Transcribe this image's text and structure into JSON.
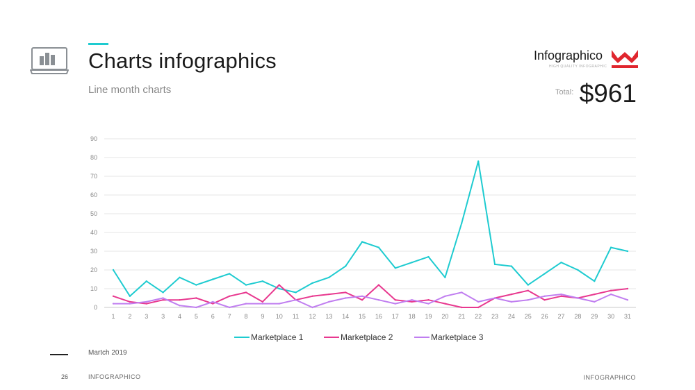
{
  "header": {
    "title": "Charts infographics",
    "subtitle": "Line month charts",
    "icon": "laptop-chart-icon",
    "accent_color": "#1ecbd0"
  },
  "brand": {
    "name": "Infographico",
    "tagline": "HIGH QUALITY INFOGRAPHIC",
    "logo_icon": "crown-logo-icon",
    "logo_color": "#e0262e"
  },
  "total": {
    "label": "Total:",
    "value": "$961"
  },
  "chart_data": {
    "type": "line",
    "x": [
      "1",
      "2",
      "3",
      "3",
      "4",
      "5",
      "6",
      "7",
      "8",
      "9",
      "10",
      "11",
      "12",
      "13",
      "14",
      "15",
      "16",
      "17",
      "18",
      "19",
      "20",
      "21",
      "22",
      "23",
      "24",
      "25",
      "26",
      "27",
      "28",
      "29",
      "30",
      "31"
    ],
    "ylim": [
      0,
      90
    ],
    "yticks": [
      0,
      10,
      20,
      30,
      40,
      50,
      60,
      70,
      80,
      90
    ],
    "grid": true,
    "legend_position": "bottom-center",
    "series": [
      {
        "name": "Marketplace 1",
        "color": "#1ecbd0",
        "values": [
          20,
          6,
          14,
          8,
          16,
          12,
          15,
          18,
          12,
          14,
          10,
          8,
          13,
          16,
          22,
          35,
          32,
          21,
          24,
          27,
          16,
          45,
          78,
          23,
          22,
          12,
          18,
          24,
          20,
          14,
          32,
          30
        ]
      },
      {
        "name": "Marketplace 2",
        "color": "#e8388f",
        "values": [
          6,
          3,
          2,
          4,
          4,
          5,
          2,
          6,
          8,
          3,
          12,
          4,
          6,
          7,
          8,
          4,
          12,
          4,
          3,
          4,
          2,
          0,
          0,
          5,
          7,
          9,
          4,
          6,
          5,
          7,
          9,
          10
        ]
      },
      {
        "name": "Marketplace 3",
        "color": "#c07ef0",
        "values": [
          2,
          2,
          3,
          5,
          1,
          0,
          3,
          0,
          2,
          2,
          2,
          4,
          0,
          3,
          5,
          6,
          4,
          2,
          4,
          2,
          6,
          8,
          3,
          5,
          3,
          4,
          6,
          7,
          5,
          3,
          7,
          4
        ]
      }
    ]
  },
  "footer": {
    "date": "Martch 2019",
    "page_number": "26",
    "brand_left": "INFOGRAPHICO",
    "brand_right": "INFOGRAPHICO"
  }
}
